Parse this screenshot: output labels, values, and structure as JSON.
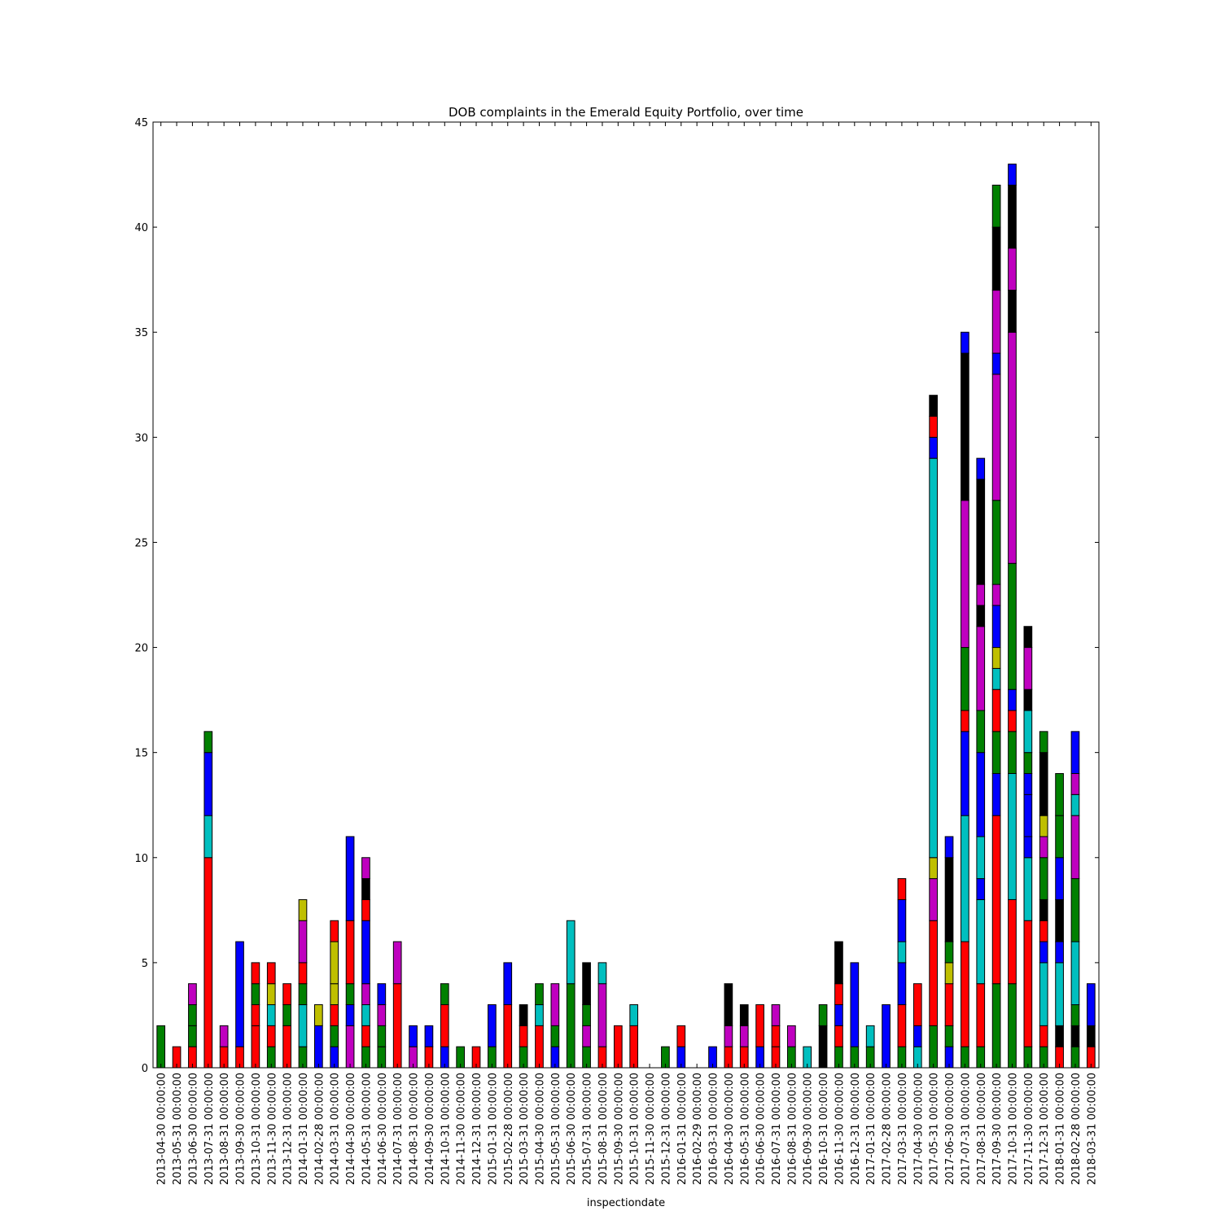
{
  "chart_data": {
    "type": "stacked_bar",
    "title": "DOB complaints in the Emerald Equity Portfolio, over time",
    "x_label": "inspectiondate",
    "ylim": [
      0,
      45
    ],
    "yticks": [
      0,
      5,
      10,
      15,
      20,
      25,
      30,
      35,
      40,
      45
    ],
    "categories": [
      "2013-04-30 00:00:00",
      "2013-05-31 00:00:00",
      "2013-06-30 00:00:00",
      "2013-07-31 00:00:00",
      "2013-08-31 00:00:00",
      "2013-09-30 00:00:00",
      "2013-10-31 00:00:00",
      "2013-11-30 00:00:00",
      "2013-12-31 00:00:00",
      "2014-01-31 00:00:00",
      "2014-02-28 00:00:00",
      "2014-03-31 00:00:00",
      "2014-04-30 00:00:00",
      "2014-05-31 00:00:00",
      "2014-06-30 00:00:00",
      "2014-07-31 00:00:00",
      "2014-08-31 00:00:00",
      "2014-09-30 00:00:00",
      "2014-10-31 00:00:00",
      "2014-11-30 00:00:00",
      "2014-12-31 00:00:00",
      "2015-01-31 00:00:00",
      "2015-02-28 00:00:00",
      "2015-03-31 00:00:00",
      "2015-04-30 00:00:00",
      "2015-05-31 00:00:00",
      "2015-06-30 00:00:00",
      "2015-07-31 00:00:00",
      "2015-08-31 00:00:00",
      "2015-09-30 00:00:00",
      "2015-10-31 00:00:00",
      "2015-11-30 00:00:00",
      "2015-12-31 00:00:00",
      "2016-01-31 00:00:00",
      "2016-02-29 00:00:00",
      "2016-03-31 00:00:00",
      "2016-04-30 00:00:00",
      "2016-05-31 00:00:00",
      "2016-06-30 00:00:00",
      "2016-07-31 00:00:00",
      "2016-08-31 00:00:00",
      "2016-09-30 00:00:00",
      "2016-10-31 00:00:00",
      "2016-11-30 00:00:00",
      "2016-12-31 00:00:00",
      "2017-01-31 00:00:00",
      "2017-02-28 00:00:00",
      "2017-03-31 00:00:00",
      "2017-04-30 00:00:00",
      "2017-05-31 00:00:00",
      "2017-06-30 00:00:00",
      "2017-07-31 00:00:00",
      "2017-08-31 00:00:00",
      "2017-09-30 00:00:00",
      "2017-10-31 00:00:00",
      "2017-11-30 00:00:00",
      "2017-12-31 00:00:00",
      "2018-01-31 00:00:00",
      "2018-02-28 00:00:00",
      "2018-03-31 00:00:00"
    ],
    "stacks": [
      {
        "colors": [
          "#008000"
        ],
        "values": [
          2
        ]
      },
      {
        "colors": [
          "#ff0000"
        ],
        "values": [
          1
        ]
      },
      {
        "colors": [
          "#ff0000",
          "#008000",
          "#008000",
          "#bf00bf"
        ],
        "values": [
          1,
          1,
          1,
          1
        ]
      },
      {
        "colors": [
          "#ff0000",
          "#00bfbf",
          "#0000ff",
          "#008000"
        ],
        "values": [
          10,
          2,
          3,
          1
        ]
      },
      {
        "colors": [
          "#ff0000",
          "#bf00bf"
        ],
        "values": [
          1,
          1
        ]
      },
      {
        "colors": [
          "#ff0000",
          "#0000ff"
        ],
        "values": [
          1,
          5
        ]
      },
      {
        "colors": [
          "#ff0000",
          "#ff0000",
          "#008000",
          "#ff0000"
        ],
        "values": [
          2,
          1,
          1,
          1
        ]
      },
      {
        "colors": [
          "#008000",
          "#ff0000",
          "#00bfbf",
          "#bfbf00",
          "#ff0000"
        ],
        "values": [
          1,
          1,
          1,
          1,
          1
        ]
      },
      {
        "colors": [
          "#ff0000",
          "#008000",
          "#ff0000"
        ],
        "values": [
          2,
          1,
          1
        ]
      },
      {
        "colors": [
          "#008000",
          "#00bfbf",
          "#008000",
          "#ff0000",
          "#bf00bf",
          "#bfbf00"
        ],
        "values": [
          1,
          2,
          1,
          1,
          2,
          1
        ]
      },
      {
        "colors": [
          "#0000ff",
          "#bfbf00"
        ],
        "values": [
          2,
          1
        ]
      },
      {
        "colors": [
          "#0000ff",
          "#008000",
          "#ff0000",
          "#bfbf00",
          "#bfbf00",
          "#ff0000"
        ],
        "values": [
          1,
          1,
          1,
          1,
          2,
          1
        ]
      },
      {
        "colors": [
          "#bf00bf",
          "#0000ff",
          "#008000",
          "#ff0000",
          "#0000ff"
        ],
        "values": [
          2,
          1,
          1,
          3,
          4
        ]
      },
      {
        "colors": [
          "#008000",
          "#ff0000",
          "#00bfbf",
          "#bf00bf",
          "#0000ff",
          "#ff0000",
          "#000000",
          "#bf00bf"
        ],
        "values": [
          1,
          1,
          1,
          1,
          3,
          1,
          1,
          1
        ]
      },
      {
        "colors": [
          "#008000",
          "#008000",
          "#bf00bf",
          "#0000ff"
        ],
        "values": [
          1,
          1,
          1,
          1
        ]
      },
      {
        "colors": [
          "#ff0000",
          "#bf00bf"
        ],
        "values": [
          4,
          2
        ]
      },
      {
        "colors": [
          "#bf00bf",
          "#0000ff"
        ],
        "values": [
          1,
          1
        ]
      },
      {
        "colors": [
          "#ff0000",
          "#0000ff"
        ],
        "values": [
          1,
          1
        ]
      },
      {
        "colors": [
          "#0000ff",
          "#ff0000",
          "#008000"
        ],
        "values": [
          1,
          2,
          1
        ]
      },
      {
        "colors": [
          "#008000"
        ],
        "values": [
          1
        ]
      },
      {
        "colors": [
          "#ff0000"
        ],
        "values": [
          1
        ]
      },
      {
        "colors": [
          "#008000",
          "#0000ff"
        ],
        "values": [
          1,
          2
        ]
      },
      {
        "colors": [
          "#ff0000",
          "#0000ff"
        ],
        "values": [
          3,
          2
        ]
      },
      {
        "colors": [
          "#008000",
          "#ff0000",
          "#000000"
        ],
        "values": [
          1,
          1,
          1
        ]
      },
      {
        "colors": [
          "#ff0000",
          "#00bfbf",
          "#008000"
        ],
        "values": [
          2,
          1,
          1
        ]
      },
      {
        "colors": [
          "#0000ff",
          "#008000",
          "#bf00bf"
        ],
        "values": [
          1,
          1,
          2
        ]
      },
      {
        "colors": [
          "#008000",
          "#00bfbf"
        ],
        "values": [
          4,
          3
        ]
      },
      {
        "colors": [
          "#008000",
          "#bf00bf",
          "#008000",
          "#000000"
        ],
        "values": [
          1,
          1,
          1,
          2
        ]
      },
      {
        "colors": [
          "#ff0000",
          "#bf00bf",
          "#00bfbf"
        ],
        "values": [
          1,
          3,
          1
        ]
      },
      {
        "colors": [
          "#ff0000"
        ],
        "values": [
          2
        ]
      },
      {
        "colors": [
          "#ff0000",
          "#00bfbf"
        ],
        "values": [
          2,
          1
        ]
      },
      {
        "colors": [],
        "values": []
      },
      {
        "colors": [
          "#008000"
        ],
        "values": [
          1
        ]
      },
      {
        "colors": [
          "#0000ff",
          "#ff0000"
        ],
        "values": [
          1,
          1
        ]
      },
      {
        "colors": [],
        "values": []
      },
      {
        "colors": [
          "#0000ff"
        ],
        "values": [
          1
        ]
      },
      {
        "colors": [
          "#ff0000",
          "#bf00bf",
          "#000000"
        ],
        "values": [
          1,
          1,
          2
        ]
      },
      {
        "colors": [
          "#ff0000",
          "#bf00bf",
          "#000000"
        ],
        "values": [
          1,
          1,
          1
        ]
      },
      {
        "colors": [
          "#0000ff",
          "#ff0000"
        ],
        "values": [
          1,
          2
        ]
      },
      {
        "colors": [
          "#ff0000",
          "#ff0000",
          "#bf00bf"
        ],
        "values": [
          1,
          1,
          1
        ]
      },
      {
        "colors": [
          "#008000",
          "#bf00bf"
        ],
        "values": [
          1,
          1
        ]
      },
      {
        "colors": [
          "#00bfbf"
        ],
        "values": [
          1
        ]
      },
      {
        "colors": [
          "#000000",
          "#008000"
        ],
        "values": [
          2,
          1
        ]
      },
      {
        "colors": [
          "#008000",
          "#ff0000",
          "#0000ff",
          "#ff0000",
          "#000000"
        ],
        "values": [
          1,
          1,
          1,
          1,
          2
        ]
      },
      {
        "colors": [
          "#008000",
          "#0000ff"
        ],
        "values": [
          1,
          4
        ]
      },
      {
        "colors": [
          "#008000",
          "#00bfbf"
        ],
        "values": [
          1,
          1
        ]
      },
      {
        "colors": [
          "#0000ff"
        ],
        "values": [
          3
        ]
      },
      {
        "colors": [
          "#008000",
          "#ff0000",
          "#0000ff",
          "#00bfbf",
          "#0000ff",
          "#ff0000"
        ],
        "values": [
          1,
          2,
          2,
          1,
          2,
          1
        ]
      },
      {
        "colors": [
          "#00bfbf",
          "#0000ff",
          "#ff0000"
        ],
        "values": [
          1,
          1,
          2
        ]
      },
      {
        "colors": [
          "#008000",
          "#ff0000",
          "#bf00bf",
          "#bfbf00",
          "#00bfbf",
          "#0000ff",
          "#ff0000",
          "#000000"
        ],
        "values": [
          2,
          5,
          2,
          1,
          19,
          1,
          1,
          1
        ]
      },
      {
        "colors": [
          "#0000ff",
          "#008000",
          "#ff0000",
          "#bfbf00",
          "#008000",
          "#000000",
          "#0000ff"
        ],
        "values": [
          1,
          1,
          2,
          1,
          1,
          4,
          1
        ]
      },
      {
        "colors": [
          "#008000",
          "#ff0000",
          "#00bfbf",
          "#0000ff",
          "#ff0000",
          "#008000",
          "#bf00bf",
          "#000000",
          "#0000ff"
        ],
        "values": [
          1,
          5,
          6,
          4,
          1,
          3,
          7,
          7,
          1
        ]
      },
      {
        "colors": [
          "#008000",
          "#ff0000",
          "#00bfbf",
          "#0000ff",
          "#00bfbf",
          "#0000ff",
          "#008000",
          "#bf00bf",
          "#000000",
          "#bf00bf",
          "#000000",
          "#0000ff"
        ],
        "values": [
          1,
          3,
          4,
          1,
          2,
          4,
          2,
          4,
          1,
          1,
          5,
          1
        ]
      },
      {
        "colors": [
          "#008000",
          "#ff0000",
          "#0000ff",
          "#008000",
          "#ff0000",
          "#00bfbf",
          "#bfbf00",
          "#0000ff",
          "#bf00bf",
          "#008000",
          "#bf00bf",
          "#0000ff",
          "#bf00bf",
          "#000000",
          "#008000"
        ],
        "values": [
          4,
          8,
          2,
          2,
          2,
          1,
          1,
          2,
          1,
          4,
          6,
          1,
          3,
          3,
          2
        ]
      },
      {
        "colors": [
          "#008000",
          "#ff0000",
          "#00bfbf",
          "#008000",
          "#ff0000",
          "#0000ff",
          "#008000",
          "#bf00bf",
          "#000000",
          "#bf00bf",
          "#000000",
          "#0000ff"
        ],
        "values": [
          4,
          4,
          6,
          2,
          1,
          1,
          6,
          11,
          2,
          2,
          3,
          1
        ]
      },
      {
        "colors": [
          "#008000",
          "#ff0000",
          "#00bfbf",
          "#0000ff",
          "#0000ff",
          "#0000ff",
          "#008000",
          "#00bfbf",
          "#000000",
          "#bf00bf",
          "#000000"
        ],
        "values": [
          1,
          6,
          3,
          1,
          2,
          1,
          1,
          2,
          1,
          2,
          1
        ]
      },
      {
        "colors": [
          "#008000",
          "#ff0000",
          "#00bfbf",
          "#0000ff",
          "#ff0000",
          "#000000",
          "#008000",
          "#bf00bf",
          "#bfbf00",
          "#000000",
          "#008000"
        ],
        "values": [
          1,
          1,
          3,
          1,
          1,
          1,
          2,
          1,
          1,
          3,
          1
        ]
      },
      {
        "colors": [
          "#ff0000",
          "#000000",
          "#00bfbf",
          "#0000ff",
          "#000000",
          "#0000ff",
          "#008000",
          "#008000"
        ],
        "values": [
          1,
          1,
          3,
          1,
          2,
          2,
          2,
          2
        ]
      },
      {
        "colors": [
          "#008000",
          "#000000",
          "#008000",
          "#00bfbf",
          "#008000",
          "#bf00bf",
          "#00bfbf",
          "#bf00bf",
          "#0000ff"
        ],
        "values": [
          1,
          1,
          1,
          3,
          3,
          3,
          1,
          1,
          2
        ]
      },
      {
        "colors": [
          "#ff0000",
          "#000000",
          "#0000ff"
        ],
        "values": [
          1,
          1,
          2
        ]
      }
    ]
  }
}
